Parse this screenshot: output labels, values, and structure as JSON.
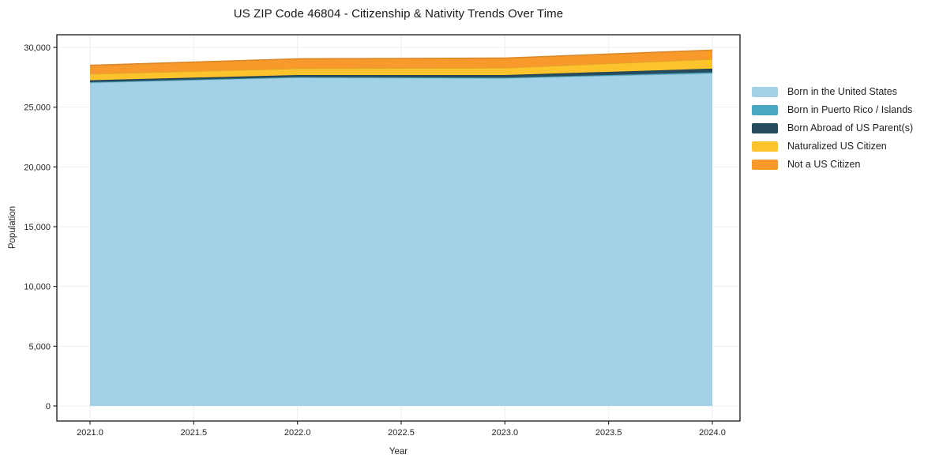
{
  "chart_data": {
    "type": "area",
    "stacked": true,
    "title": "US ZIP Code 46804 - Citizenship & Nativity Trends Over Time",
    "xlabel": "Year",
    "ylabel": "Population",
    "x": [
      2021,
      2022,
      2023,
      2024
    ],
    "series": [
      {
        "name": "Born in the United States",
        "color": "#a3d2e8",
        "values": [
          27050,
          27480,
          27420,
          27830
        ]
      },
      {
        "name": "Born in Puerto Rico / Islands",
        "color": "#48a8c4",
        "values": [
          50,
          40,
          50,
          90
        ]
      },
      {
        "name": "Born Abroad of US Parent(s)",
        "color": "#254b5e",
        "values": [
          150,
          170,
          220,
          300
        ]
      },
      {
        "name": "Naturalized US Citizen",
        "color": "#fcc32d",
        "values": [
          530,
          540,
          590,
          790
        ]
      },
      {
        "name": "Not a US Citizen",
        "color": "#f8992c",
        "values": [
          720,
          810,
          830,
          760
        ]
      }
    ],
    "totals": [
      28500,
      29040,
      29110,
      29770
    ],
    "xticks": [
      2021.0,
      2021.5,
      2022.0,
      2022.5,
      2023.0,
      2023.5,
      2024.0
    ],
    "xtick_labels": [
      "2021.0",
      "2021.5",
      "2022.0",
      "2022.5",
      "2023.0",
      "2023.5",
      "2024.0"
    ],
    "yticks": [
      0,
      5000,
      10000,
      15000,
      20000,
      25000,
      30000
    ],
    "ytick_labels": [
      "0",
      "5,000",
      "10,000",
      "15,000",
      "20,000",
      "25,000",
      "30,000"
    ],
    "xlim": [
      2020.84,
      2024.16
    ],
    "ylim": [
      -1255,
      31060
    ],
    "grid": true,
    "legend_position": "right",
    "spine_color": "#262626",
    "grid_color": "#ededed",
    "background_color": "#ffffff"
  }
}
